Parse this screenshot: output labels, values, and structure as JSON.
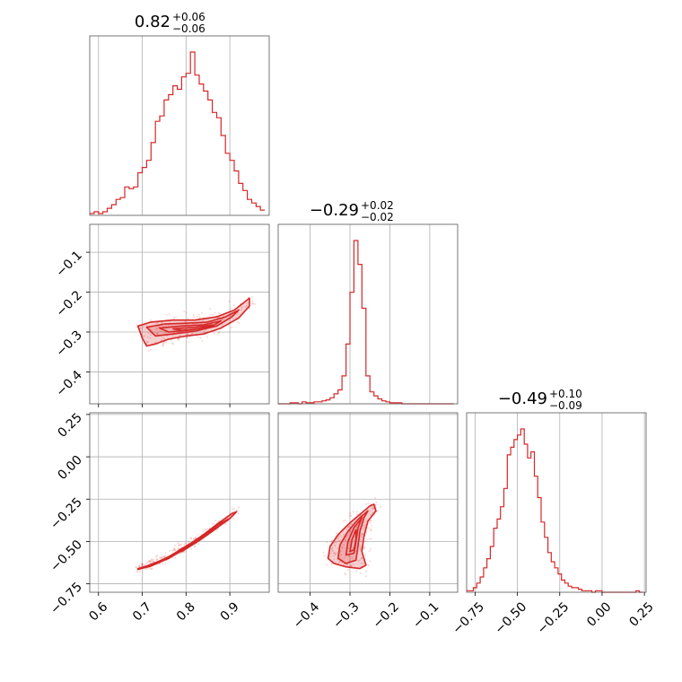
{
  "chart_data": {
    "type": "corner",
    "color": "#d62728",
    "parameters": [
      {
        "title_value": "0.82",
        "title_plus": "+0.06",
        "title_minus": "−0.06",
        "range": [
          0.58,
          0.99
        ],
        "ticks": [
          0.6,
          0.7,
          0.8,
          0.9
        ],
        "tick_labels": [
          "0.6",
          "0.7",
          "0.8",
          "0.9"
        ],
        "histogram": {
          "bins": [
            0.58,
            0.59,
            0.6,
            0.61,
            0.62,
            0.63,
            0.64,
            0.65,
            0.66,
            0.67,
            0.68,
            0.69,
            0.7,
            0.71,
            0.72,
            0.73,
            0.74,
            0.75,
            0.76,
            0.77,
            0.78,
            0.79,
            0.8,
            0.81,
            0.82,
            0.83,
            0.84,
            0.85,
            0.86,
            0.87,
            0.88,
            0.89,
            0.9,
            0.91,
            0.92,
            0.93,
            0.94,
            0.95,
            0.96,
            0.97,
            0.98
          ],
          "counts": [
            1,
            2,
            1,
            2,
            4,
            6,
            9,
            10,
            16,
            15,
            16,
            24,
            27,
            31,
            41,
            53,
            56,
            65,
            68,
            73,
            71,
            78,
            80,
            92,
            79,
            74,
            70,
            65,
            58,
            55,
            45,
            35,
            31,
            25,
            18,
            14,
            9,
            7,
            5,
            3
          ]
        }
      },
      {
        "title_value": "−0.29",
        "title_plus": "+0.02",
        "title_minus": "−0.02",
        "range": [
          -0.48,
          -0.03
        ],
        "ticks": [
          -0.4,
          -0.3,
          -0.2,
          -0.1
        ],
        "tick_labels": [
          "−0.4",
          "−0.3",
          "−0.2",
          "−0.1"
        ],
        "histogram": {
          "bins": [
            -0.48,
            -0.47,
            -0.46,
            -0.45,
            -0.44,
            -0.43,
            -0.42,
            -0.41,
            -0.4,
            -0.39,
            -0.38,
            -0.37,
            -0.36,
            -0.35,
            -0.34,
            -0.33,
            -0.32,
            -0.31,
            -0.3,
            -0.29,
            -0.28,
            -0.27,
            -0.26,
            -0.25,
            -0.24,
            -0.23,
            -0.22,
            -0.21,
            -0.2,
            -0.19,
            -0.18,
            -0.17,
            -0.16,
            -0.15,
            -0.14,
            -0.13,
            -0.12,
            -0.11,
            -0.1,
            -0.09,
            -0.08,
            -0.07,
            -0.06,
            -0.05,
            -0.04
          ],
          "counts": [
            0,
            0,
            0,
            1,
            1,
            0,
            2,
            1,
            1,
            2,
            2,
            3,
            4,
            6,
            10,
            14,
            28,
            60,
            112,
            164,
            140,
            96,
            28,
            12,
            8,
            5,
            3,
            2,
            1,
            1,
            1,
            0,
            0,
            0,
            0,
            0,
            0,
            0,
            0,
            0,
            0,
            0,
            0,
            0
          ]
        }
      },
      {
        "title_value": "−0.49",
        "title_plus": "+0.10",
        "title_minus": "−0.09",
        "range": [
          -0.8,
          0.26
        ],
        "ticks": [
          -0.75,
          -0.5,
          -0.25,
          0.0,
          0.25
        ],
        "tick_labels": [
          "−0.75",
          "−0.50",
          "−0.25",
          "0.00",
          "0.25"
        ],
        "histogram": {
          "bins": [
            -0.8,
            -0.78,
            -0.76,
            -0.74,
            -0.72,
            -0.7,
            -0.68,
            -0.66,
            -0.64,
            -0.62,
            -0.6,
            -0.58,
            -0.56,
            -0.54,
            -0.52,
            -0.5,
            -0.48,
            -0.46,
            -0.44,
            -0.42,
            -0.4,
            -0.38,
            -0.36,
            -0.34,
            -0.32,
            -0.3,
            -0.28,
            -0.26,
            -0.24,
            -0.22,
            -0.2,
            -0.18,
            -0.16,
            -0.14,
            -0.12,
            -0.1,
            -0.08,
            -0.06,
            -0.04,
            -0.02,
            0.0,
            0.02,
            0.04,
            0.06,
            0.08,
            0.1,
            0.12,
            0.14,
            0.16,
            0.18,
            0.2,
            0.22,
            0.24
          ],
          "counts": [
            1,
            1,
            3,
            6,
            10,
            16,
            22,
            30,
            42,
            48,
            56,
            68,
            90,
            95,
            100,
            103,
            107,
            97,
            88,
            92,
            76,
            62,
            46,
            36,
            26,
            20,
            16,
            12,
            8,
            6,
            4,
            3,
            3,
            2,
            1,
            1,
            1,
            0,
            1,
            1,
            0,
            0,
            0,
            0,
            0,
            0,
            0,
            0,
            0,
            0,
            1,
            0
          ]
        }
      }
    ],
    "joint_shapes": {
      "p1_vs_p0": {
        "scatter_spread": 0.025,
        "contours": [
          [
            [
              0.69,
              -0.285
            ],
            [
              0.72,
              -0.275
            ],
            [
              0.77,
              -0.27
            ],
            [
              0.82,
              -0.27
            ],
            [
              0.87,
              -0.262
            ],
            [
              0.91,
              -0.245
            ],
            [
              0.945,
              -0.215
            ],
            [
              0.945,
              -0.235
            ],
            [
              0.92,
              -0.265
            ],
            [
              0.88,
              -0.29
            ],
            [
              0.84,
              -0.305
            ],
            [
              0.8,
              -0.31
            ],
            [
              0.76,
              -0.318
            ],
            [
              0.73,
              -0.33
            ],
            [
              0.71,
              -0.335
            ],
            [
              0.7,
              -0.315
            ]
          ],
          [
            [
              0.71,
              -0.288
            ],
            [
              0.75,
              -0.28
            ],
            [
              0.8,
              -0.278
            ],
            [
              0.85,
              -0.275
            ],
            [
              0.89,
              -0.262
            ],
            [
              0.92,
              -0.245
            ],
            [
              0.905,
              -0.262
            ],
            [
              0.87,
              -0.285
            ],
            [
              0.82,
              -0.298
            ],
            [
              0.77,
              -0.305
            ],
            [
              0.73,
              -0.31
            ]
          ],
          [
            [
              0.74,
              -0.29
            ],
            [
              0.79,
              -0.285
            ],
            [
              0.84,
              -0.282
            ],
            [
              0.88,
              -0.272
            ],
            [
              0.86,
              -0.285
            ],
            [
              0.81,
              -0.295
            ],
            [
              0.76,
              -0.3
            ]
          ],
          [
            [
              0.77,
              -0.292
            ],
            [
              0.82,
              -0.288
            ],
            [
              0.86,
              -0.282
            ],
            [
              0.83,
              -0.292
            ],
            [
              0.79,
              -0.296
            ]
          ]
        ]
      },
      "p2_vs_p0": {
        "scatter_spread": 0.02,
        "contours": [
          [
            [
              0.69,
              -0.665
            ],
            [
              0.72,
              -0.645
            ],
            [
              0.76,
              -0.6
            ],
            [
              0.8,
              -0.535
            ],
            [
              0.84,
              -0.46
            ],
            [
              0.875,
              -0.39
            ],
            [
              0.905,
              -0.335
            ],
            [
              0.915,
              -0.325
            ],
            [
              0.9,
              -0.365
            ],
            [
              0.865,
              -0.43
            ],
            [
              0.825,
              -0.5
            ],
            [
              0.785,
              -0.56
            ],
            [
              0.745,
              -0.61
            ],
            [
              0.71,
              -0.645
            ],
            [
              0.69,
              -0.66
            ]
          ],
          [
            [
              0.72,
              -0.64
            ],
            [
              0.77,
              -0.585
            ],
            [
              0.82,
              -0.51
            ],
            [
              0.86,
              -0.44
            ],
            [
              0.895,
              -0.37
            ],
            [
              0.88,
              -0.39
            ],
            [
              0.84,
              -0.46
            ],
            [
              0.8,
              -0.53
            ],
            [
              0.76,
              -0.59
            ]
          ],
          [
            [
              0.76,
              -0.6
            ],
            [
              0.8,
              -0.54
            ],
            [
              0.84,
              -0.475
            ],
            [
              0.875,
              -0.41
            ],
            [
              0.86,
              -0.43
            ],
            [
              0.825,
              -0.49
            ],
            [
              0.785,
              -0.55
            ]
          ],
          [
            [
              0.79,
              -0.56
            ],
            [
              0.83,
              -0.495
            ],
            [
              0.86,
              -0.44
            ],
            [
              0.845,
              -0.465
            ],
            [
              0.81,
              -0.525
            ]
          ]
        ]
      },
      "p2_vs_p1": {
        "scatter_spread": 0.03,
        "contours": [
          [
            [
              -0.355,
              -0.6
            ],
            [
              -0.35,
              -0.53
            ],
            [
              -0.33,
              -0.46
            ],
            [
              -0.3,
              -0.39
            ],
            [
              -0.27,
              -0.33
            ],
            [
              -0.25,
              -0.29
            ],
            [
              -0.24,
              -0.28
            ],
            [
              -0.235,
              -0.32
            ],
            [
              -0.255,
              -0.38
            ],
            [
              -0.265,
              -0.47
            ],
            [
              -0.27,
              -0.56
            ],
            [
              -0.26,
              -0.64
            ],
            [
              -0.275,
              -0.66
            ],
            [
              -0.31,
              -0.65
            ],
            [
              -0.34,
              -0.63
            ]
          ],
          [
            [
              -0.33,
              -0.6
            ],
            [
              -0.325,
              -0.52
            ],
            [
              -0.305,
              -0.44
            ],
            [
              -0.28,
              -0.37
            ],
            [
              -0.255,
              -0.32
            ],
            [
              -0.265,
              -0.36
            ],
            [
              -0.275,
              -0.44
            ],
            [
              -0.28,
              -0.53
            ],
            [
              -0.285,
              -0.61
            ],
            [
              -0.31,
              -0.63
            ]
          ],
          [
            [
              -0.31,
              -0.58
            ],
            [
              -0.305,
              -0.5
            ],
            [
              -0.29,
              -0.42
            ],
            [
              -0.27,
              -0.36
            ],
            [
              -0.28,
              -0.42
            ],
            [
              -0.285,
              -0.5
            ],
            [
              -0.29,
              -0.57
            ]
          ],
          [
            [
              -0.3,
              -0.56
            ],
            [
              -0.295,
              -0.49
            ],
            [
              -0.285,
              -0.43
            ],
            [
              -0.285,
              -0.49
            ],
            [
              -0.29,
              -0.55
            ]
          ]
        ]
      }
    },
    "grid": true
  }
}
